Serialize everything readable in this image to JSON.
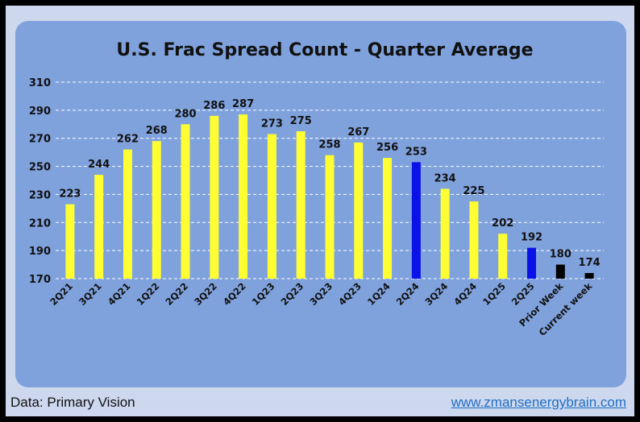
{
  "chart_data": {
    "type": "bar",
    "title": "U.S. Frac Spread Count - Quarter Average",
    "categories": [
      "2Q21",
      "3Q21",
      "4Q21",
      "1Q22",
      "2Q22",
      "3Q22",
      "4Q22",
      "1Q23",
      "2Q23",
      "3Q23",
      "4Q23",
      "1Q24",
      "2Q24",
      "3Q24",
      "4Q24",
      "1Q25",
      "2Q25",
      "Prior Week",
      "Current week"
    ],
    "values": [
      223,
      244,
      262,
      268,
      280,
      286,
      287,
      273,
      275,
      258,
      267,
      256,
      253,
      234,
      225,
      202,
      192,
      180,
      174
    ],
    "bar_colors": [
      "#ffff33",
      "#ffff33",
      "#ffff33",
      "#ffff33",
      "#ffff33",
      "#ffff33",
      "#ffff33",
      "#ffff33",
      "#ffff33",
      "#ffff33",
      "#ffff33",
      "#ffff33",
      "#0a12e8",
      "#ffff33",
      "#ffff33",
      "#ffff33",
      "#0a12e8",
      "#000000",
      "#000000"
    ],
    "yticks": [
      170,
      190,
      210,
      230,
      250,
      270,
      290,
      310
    ],
    "ylim": [
      170,
      310
    ],
    "grid": true,
    "xlabel": "",
    "ylabel": ""
  },
  "footer": {
    "source": "Data: Primary Vision",
    "website": "www.zmansenergybrain.com"
  }
}
